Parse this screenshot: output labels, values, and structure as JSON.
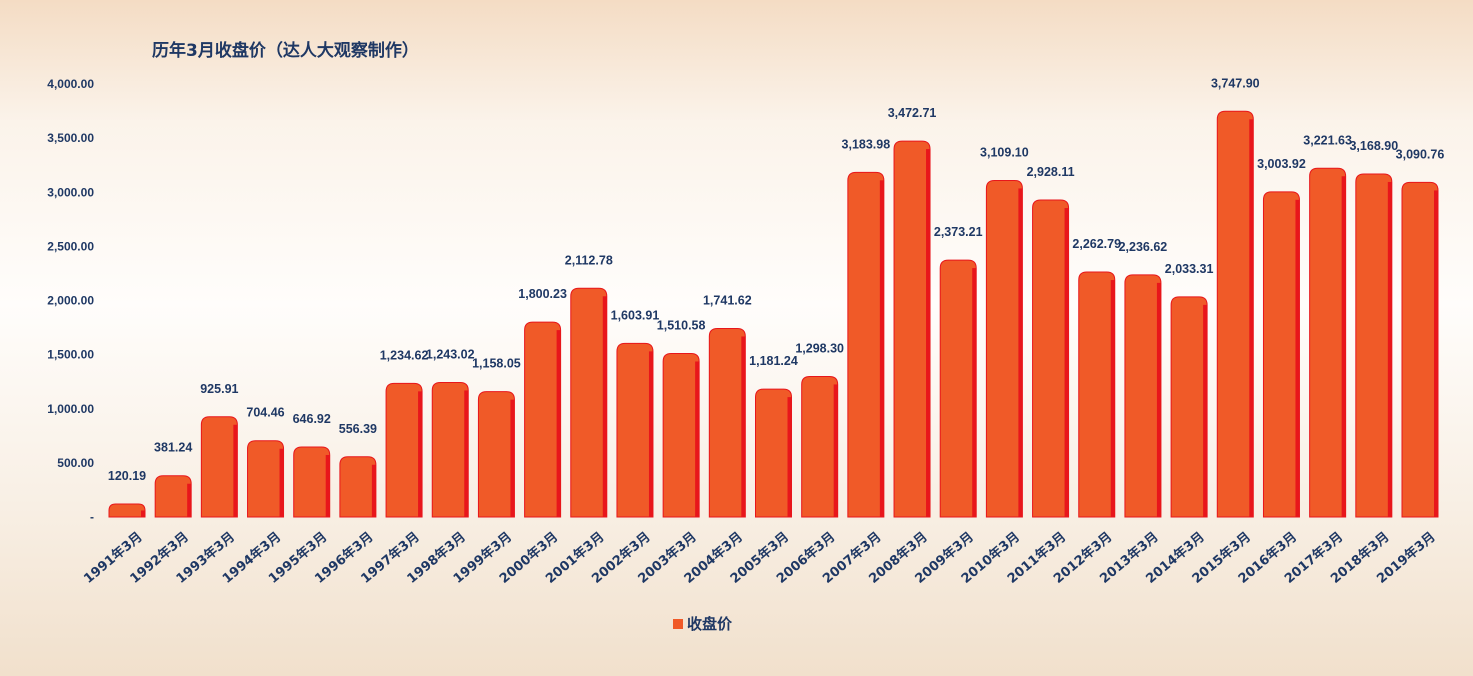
{
  "chart_data": {
    "type": "bar",
    "title": "历年3月收盘价（达人大观察制作）",
    "categories": [
      "1991年3月",
      "1992年3月",
      "1993年3月",
      "1994年3月",
      "1995年3月",
      "1996年3月",
      "1997年3月",
      "1998年3月",
      "1999年3月",
      "2000年3月",
      "2001年3月",
      "2002年3月",
      "2003年3月",
      "2004年3月",
      "2005年3月",
      "2006年3月",
      "2007年3月",
      "2008年3月",
      "2009年3月",
      "2010年3月",
      "2011年3月",
      "2012年3月",
      "2013年3月",
      "2014年3月",
      "2015年3月",
      "2016年3月",
      "2017年3月",
      "2018年3月",
      "2019年3月"
    ],
    "series": [
      {
        "name": "收盘价",
        "values": [
          120.19,
          381.24,
          925.91,
          704.46,
          646.92,
          556.39,
          1234.62,
          1243.02,
          1158.05,
          1800.23,
          2112.78,
          1603.91,
          1510.58,
          1741.62,
          1181.24,
          1298.3,
          3183.98,
          3472.71,
          2373.21,
          3109.1,
          2928.11,
          2262.79,
          2236.62,
          2033.31,
          3747.9,
          3003.92,
          3221.63,
          3168.9,
          3090.76
        ]
      }
    ],
    "yticks": [
      "-",
      "500.00",
      "1,000.00",
      "1,500.00",
      "2,000.00",
      "2,500.00",
      "3,000.00",
      "3,500.00",
      "4,000.00"
    ],
    "ylim": [
      0,
      4000
    ],
    "legend": "bottom",
    "grid": false,
    "bar_color": "#f05a28",
    "bar_edge_color": "#e8161b"
  }
}
